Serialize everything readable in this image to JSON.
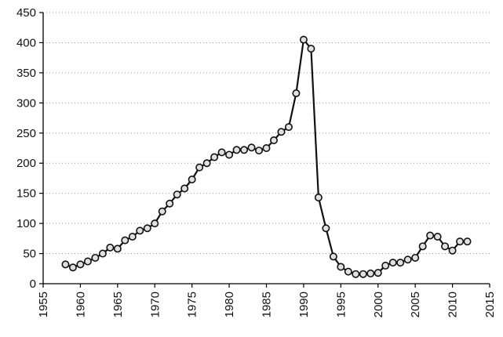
{
  "chart_data": {
    "type": "line",
    "title": "",
    "xlabel": "",
    "ylabel": "",
    "xlim": [
      1955,
      2015
    ],
    "ylim": [
      0,
      450
    ],
    "x_ticks": [
      1955,
      1960,
      1965,
      1970,
      1975,
      1980,
      1985,
      1990,
      1995,
      2000,
      2005,
      2010,
      2015
    ],
    "y_ticks": [
      0,
      50,
      100,
      150,
      200,
      250,
      300,
      350,
      400,
      450
    ],
    "grid": "horizontal-dotted",
    "legend": "none",
    "colors": {
      "line": "#111111",
      "marker_fill": "#e0e0e0",
      "grid": "#9a9a9a"
    },
    "series": [
      {
        "x": [
          1958,
          1959,
          1960,
          1961,
          1962,
          1963,
          1964,
          1965,
          1966,
          1967,
          1968,
          1969,
          1970,
          1971,
          1972,
          1973,
          1974,
          1975,
          1976,
          1977,
          1978,
          1979,
          1980,
          1981,
          1982,
          1983,
          1984,
          1985,
          1986,
          1987,
          1988,
          1989,
          1990,
          1991,
          1992,
          1993,
          1994,
          1995,
          1996,
          1997,
          1998,
          1999,
          2000,
          2001,
          2002,
          2003,
          2004,
          2005,
          2006,
          2007,
          2008,
          2009,
          2010,
          2011,
          2012
        ],
        "values": [
          32,
          27,
          32,
          37,
          43,
          50,
          60,
          58,
          72,
          78,
          88,
          92,
          100,
          120,
          133,
          148,
          158,
          173,
          193,
          200,
          210,
          218,
          214,
          222,
          222,
          226,
          221,
          225,
          238,
          252,
          260,
          316,
          405,
          390,
          143,
          92,
          45,
          28,
          20,
          16,
          16,
          17,
          18,
          30,
          35,
          35,
          40,
          43,
          62,
          80,
          78,
          62,
          55,
          70,
          70
        ]
      }
    ]
  }
}
